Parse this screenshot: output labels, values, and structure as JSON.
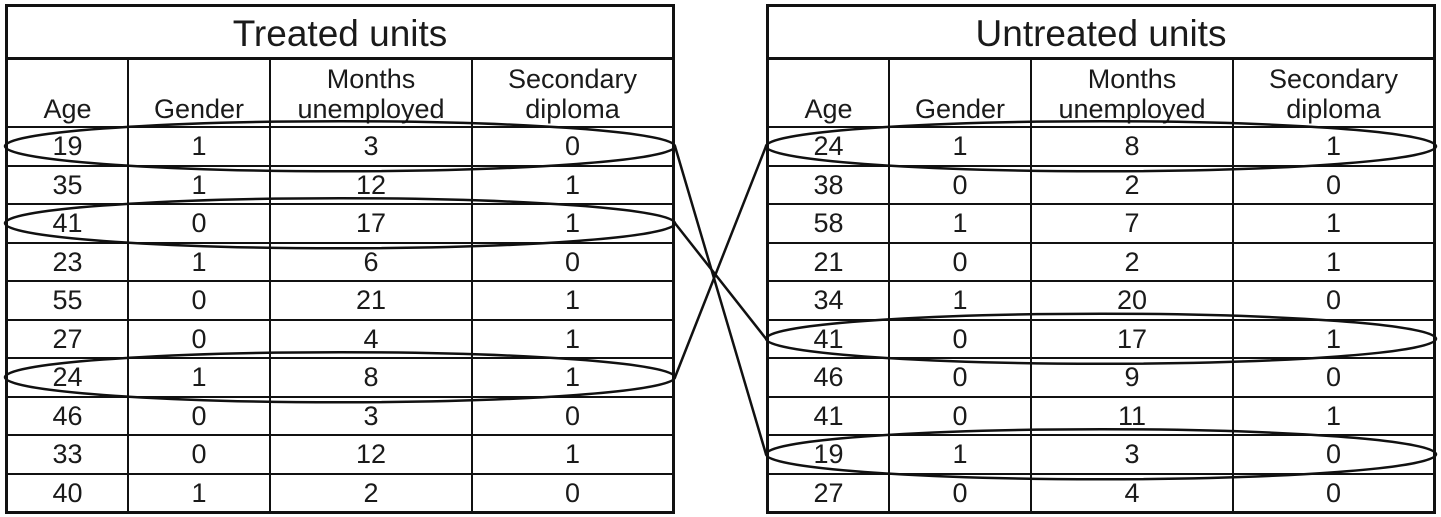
{
  "columns": [
    "Age",
    "Gender",
    "Months unemployed",
    "Secondary diploma"
  ],
  "treated": {
    "title": "Treated units",
    "rows": [
      [
        "19",
        "1",
        "3",
        "0"
      ],
      [
        "35",
        "1",
        "12",
        "1"
      ],
      [
        "41",
        "0",
        "17",
        "1"
      ],
      [
        "23",
        "1",
        "6",
        "0"
      ],
      [
        "55",
        "0",
        "21",
        "1"
      ],
      [
        "27",
        "0",
        "4",
        "1"
      ],
      [
        "24",
        "1",
        "8",
        "1"
      ],
      [
        "46",
        "0",
        "3",
        "0"
      ],
      [
        "33",
        "0",
        "12",
        "1"
      ],
      [
        "40",
        "1",
        "2",
        "0"
      ]
    ],
    "highlighted_rows": [
      1,
      3,
      7
    ]
  },
  "untreated": {
    "title": "Untreated units",
    "rows": [
      [
        "24",
        "1",
        "8",
        "1"
      ],
      [
        "38",
        "0",
        "2",
        "0"
      ],
      [
        "58",
        "1",
        "7",
        "1"
      ],
      [
        "21",
        "0",
        "2",
        "1"
      ],
      [
        "34",
        "1",
        "20",
        "0"
      ],
      [
        "41",
        "0",
        "17",
        "1"
      ],
      [
        "46",
        "0",
        "9",
        "0"
      ],
      [
        "41",
        "0",
        "11",
        "1"
      ],
      [
        "19",
        "1",
        "3",
        "0"
      ],
      [
        "27",
        "0",
        "4",
        "0"
      ]
    ],
    "highlighted_rows": [
      1,
      6,
      9
    ]
  },
  "matches": [
    {
      "treated_row": 1,
      "untreated_row": 9
    },
    {
      "treated_row": 3,
      "untreated_row": 6
    },
    {
      "treated_row": 7,
      "untreated_row": 1
    }
  ],
  "colors": {
    "ink": "#111111",
    "background": "#ffffff"
  }
}
